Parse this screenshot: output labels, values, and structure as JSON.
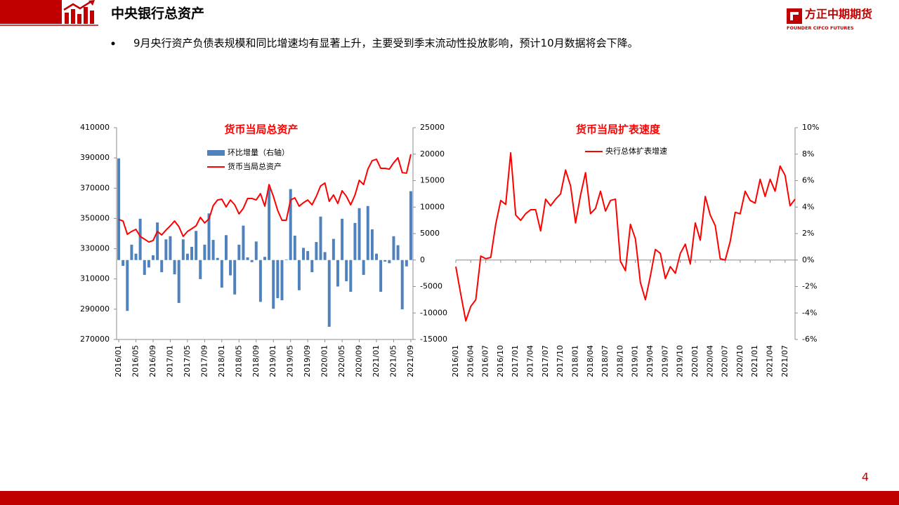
{
  "header": {
    "title": "中央银行总资产",
    "logo_name": "方正中期期货",
    "logo_subtitle": "FOUNDER CIFCO FUTURES"
  },
  "bullet": "9月央行资产负债表规模和同比增速均有显著上升，主要受到季末流动性投放影响，预计10月数据将会下降。",
  "page_number": "4",
  "chart_data": [
    {
      "type": "combo",
      "title": "货币当局总资产",
      "categories": [
        "2016/01",
        null,
        null,
        null,
        "2016/05",
        null,
        null,
        null,
        "2016/09",
        null,
        null,
        null,
        "2017/01",
        null,
        null,
        null,
        "2017/05",
        null,
        null,
        null,
        "2017/09",
        null,
        null,
        null,
        "2018/01",
        null,
        null,
        null,
        "2018/05",
        null,
        null,
        null,
        "2018/09",
        null,
        null,
        null,
        "2019/01",
        null,
        null,
        null,
        "2019/05",
        null,
        null,
        null,
        "2019/09",
        null,
        null,
        null,
        "2020/01",
        null,
        null,
        null,
        "2020/05",
        null,
        null,
        null,
        "2020/09",
        null,
        null,
        null,
        "2021/01",
        null,
        null,
        null,
        "2021/05",
        null,
        null,
        null,
        "2021/09"
      ],
      "series": [
        {
          "name": "环比增量（右轴）",
          "type": "bar",
          "axis": "y2",
          "color": "#4f81bd",
          "values": [
            19200,
            -1100,
            -9600,
            2900,
            1200,
            7800,
            -2800,
            -1400,
            900,
            7100,
            -2300,
            3900,
            4500,
            -2700,
            -8100,
            3900,
            1200,
            2500,
            5500,
            -3600,
            2900,
            8800,
            3800,
            400,
            -5200,
            4700,
            -2900,
            -6500,
            2900,
            6500,
            500,
            -400,
            3500,
            -7900,
            600,
            13600,
            -9200,
            -7200,
            -7600,
            100,
            13400,
            4600,
            -5700,
            2300,
            1700,
            -2300,
            3400,
            8200,
            1500,
            -12600,
            4000,
            -5000,
            7800,
            -4000,
            -6000,
            7000,
            9800,
            -2800,
            10200,
            5800,
            1200,
            -6000,
            -300,
            -600,
            4500,
            2800,
            -9300,
            -1200,
            13000
          ]
        },
        {
          "name": "货币当局总资产",
          "type": "line",
          "color": "#ff0000",
          "values": [
            349300,
            348300,
            339500,
            341400,
            342800,
            338100,
            336300,
            334400,
            335400,
            341400,
            339100,
            342300,
            345100,
            348300,
            344600,
            338100,
            341400,
            343200,
            345100,
            350700,
            347000,
            349700,
            358500,
            362200,
            362700,
            357600,
            362200,
            359000,
            353000,
            356700,
            363200,
            363200,
            362200,
            366400,
            358100,
            372400,
            364600,
            355300,
            348800,
            348800,
            362200,
            363600,
            358100,
            360400,
            362200,
            359000,
            364600,
            371500,
            373400,
            361300,
            365500,
            359900,
            368300,
            364600,
            359000,
            365500,
            375200,
            372400,
            382600,
            388200,
            389100,
            383100,
            383100,
            382600,
            386800,
            390100,
            380300,
            379900,
            392400
          ]
        }
      ],
      "ylim": [
        270000,
        410000
      ],
      "yticks": [
        270000,
        290000,
        310000,
        330000,
        350000,
        370000,
        390000,
        410000
      ],
      "y2lim": [
        -15000,
        25000
      ],
      "y2ticks": [
        -15000,
        -10000,
        -5000,
        0,
        5000,
        10000,
        15000,
        20000,
        25000
      ],
      "legend": "top"
    },
    {
      "type": "line",
      "title": "货币当局扩表速度",
      "categories": [
        "2016/01",
        null,
        null,
        "2016/04",
        null,
        null,
        "2016/07",
        null,
        null,
        "2016/10",
        null,
        null,
        "2017/01",
        null,
        null,
        "2017/04",
        null,
        null,
        "2017/07",
        null,
        null,
        "2017/10",
        null,
        null,
        "2018/01",
        null,
        null,
        "2018/04",
        null,
        null,
        "2018/07",
        null,
        null,
        "2018/10",
        null,
        null,
        "2019/01",
        null,
        null,
        "2019/04",
        null,
        null,
        "2019/07",
        null,
        null,
        "2019/10",
        null,
        null,
        "2020/01",
        null,
        null,
        "2020/04",
        null,
        null,
        "2020/07",
        null,
        null,
        "2020/10",
        null,
        null,
        "2021/01",
        null,
        null,
        "2021/04",
        null,
        null,
        "2021/07",
        null,
        null
      ],
      "series": [
        {
          "name": "央行总体扩表增速",
          "color": "#ff0000",
          "values": [
            -0.5,
            -2.6,
            -4.6,
            -3.5,
            -3.0,
            0.3,
            0.1,
            0.2,
            2.7,
            4.5,
            4.2,
            8.1,
            3.4,
            3.0,
            3.5,
            3.8,
            3.8,
            2.2,
            4.6,
            4.1,
            4.6,
            5.0,
            6.8,
            5.6,
            2.8,
            4.9,
            6.6,
            3.5,
            3.9,
            5.2,
            3.7,
            4.5,
            4.6,
            -0.1,
            -0.8,
            2.7,
            1.6,
            -1.7,
            -3.0,
            -1.2,
            0.8,
            0.5,
            -1.4,
            -0.5,
            -1.0,
            0.5,
            1.2,
            -0.3,
            2.8,
            1.5,
            4.8,
            3.4,
            2.6,
            0.1,
            0.0,
            1.4,
            3.6,
            3.5,
            5.2,
            4.5,
            4.3,
            6.1,
            4.8,
            6.1,
            5.2,
            7.1,
            6.4,
            4.1,
            4.6
          ]
        }
      ],
      "ylim": [
        -6,
        10
      ],
      "yticks": [
        {
          "value": -6,
          "label": "-6%"
        },
        {
          "value": -4,
          "label": "-4%"
        },
        {
          "value": -2,
          "label": "-2%"
        },
        {
          "value": 0,
          "label": "0%"
        },
        {
          "value": 2,
          "label": "2%"
        },
        {
          "value": 4,
          "label": "4%"
        },
        {
          "value": 6,
          "label": "6%"
        },
        {
          "value": 8,
          "label": "8%"
        },
        {
          "value": 10,
          "label": "10%"
        }
      ],
      "y_axis": "right",
      "legend": "top"
    }
  ]
}
